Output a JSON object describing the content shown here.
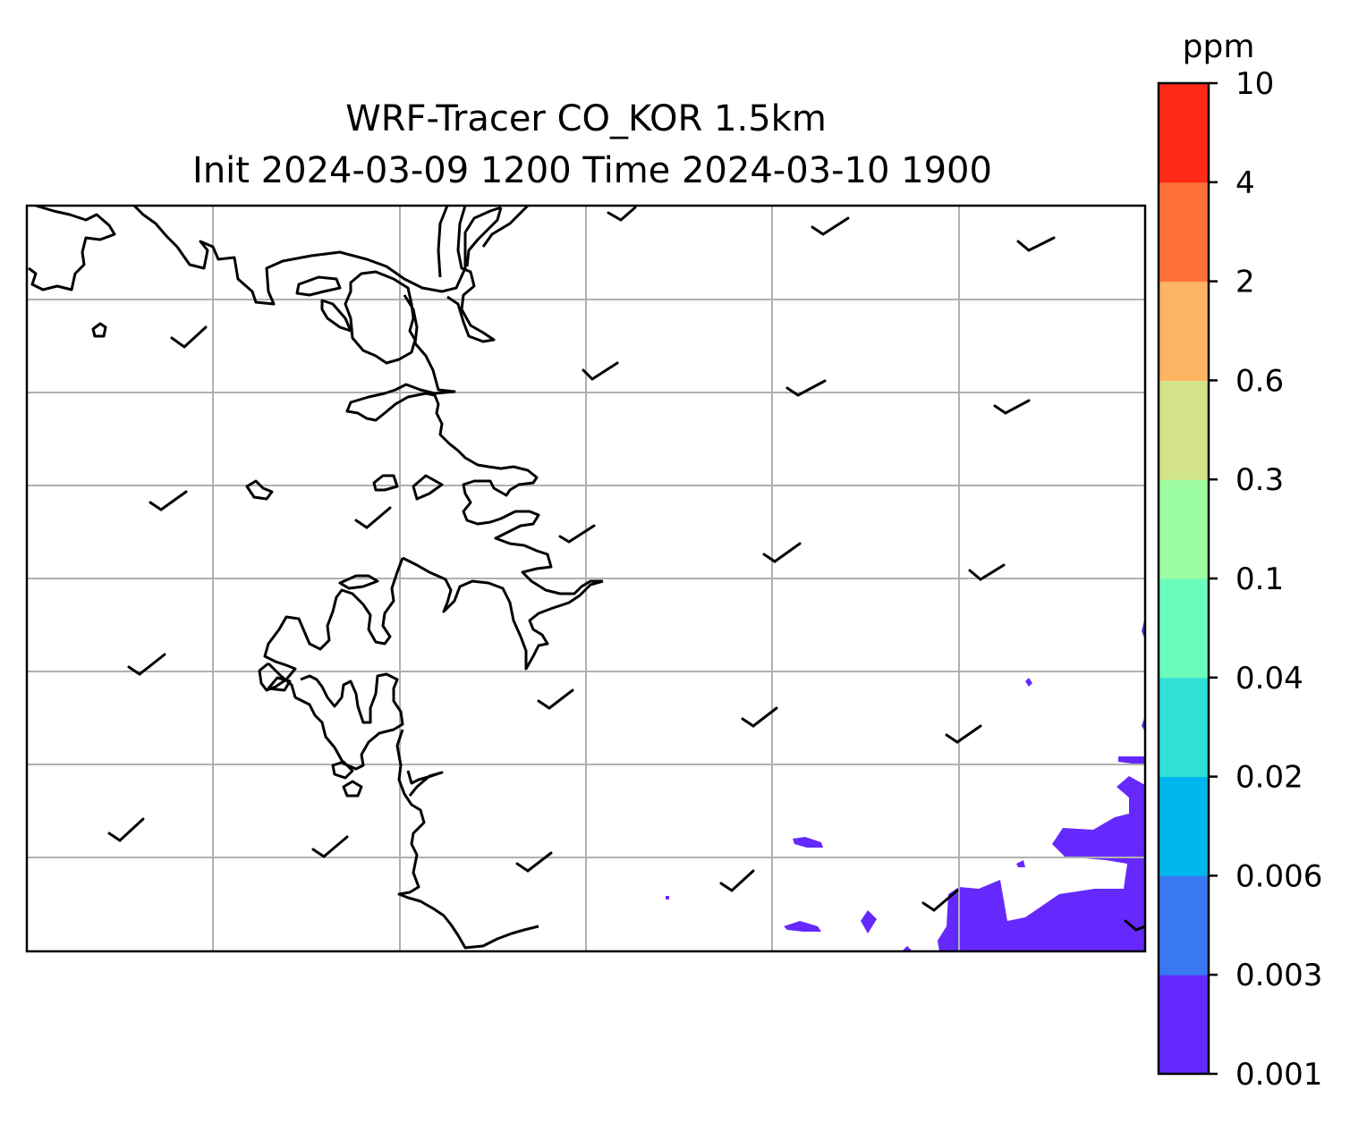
{
  "title": {
    "line1": "WRF-Tracer CO_KOR 1.5km",
    "line2": "Init 2024-03-09 1200 Time 2024-03-10 1900"
  },
  "colorbar": {
    "unit": "ppm",
    "levels": [
      {
        "label": "0.001",
        "color": "#6529fd"
      },
      {
        "label": "0.003",
        "color": "#3a77f2"
      },
      {
        "label": "0.006",
        "color": "#00b6ef"
      },
      {
        "label": "0.02",
        "color": "#30e0d5"
      },
      {
        "label": "0.04",
        "color": "#6bfcbc"
      },
      {
        "label": "0.1",
        "color": "#9cfca1"
      },
      {
        "label": "0.3",
        "color": "#d2e388"
      },
      {
        "label": "0.6",
        "color": "#fdb462"
      },
      {
        "label": "2",
        "color": "#ff7139"
      },
      {
        "label": "4",
        "color": "#ff2a17"
      },
      {
        "label": "10",
        "color": null
      }
    ]
  },
  "map": {
    "gridlines": true,
    "coastline_color": "#000000",
    "grid_color": "#b0b0b0",
    "wind_barb_color": "#000000"
  }
}
